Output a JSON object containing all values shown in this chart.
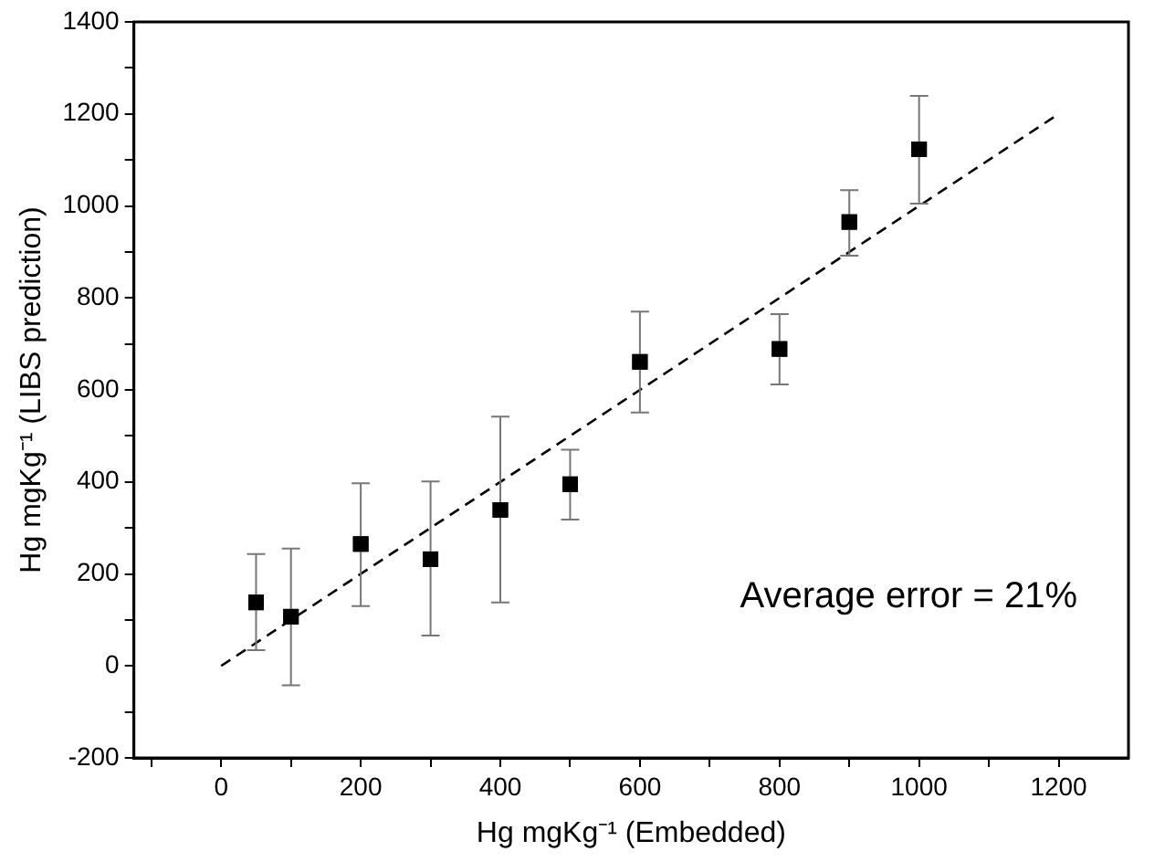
{
  "chart_data": {
    "type": "scatter",
    "xlabel": "Hg mgKg⁻¹ (Embedded)",
    "ylabel": "Hg mgKg⁻¹ (LIBS prediction)",
    "xlim": [
      -125,
      1300
    ],
    "ylim": [
      -200,
      1400
    ],
    "xticks": [
      {
        "value": -100,
        "label": null
      },
      0,
      {
        "value": 100,
        "label": null
      },
      200,
      {
        "value": 300,
        "label": null
      },
      400,
      {
        "value": 500,
        "label": null
      },
      600,
      {
        "value": 700,
        "label": null
      },
      800,
      {
        "value": 900,
        "label": null
      },
      1000,
      {
        "value": 1100,
        "label": null
      },
      1200
    ],
    "yticks": [
      -200,
      {
        "value": -100,
        "label": null
      },
      0,
      {
        "value": 100,
        "label": null
      },
      200,
      {
        "value": 300,
        "label": null
      },
      400,
      {
        "value": 500,
        "label": null
      },
      600,
      {
        "value": 700,
        "label": null
      },
      800,
      {
        "value": 900,
        "label": null
      },
      1000,
      {
        "value": 1100,
        "label": null
      },
      1200,
      {
        "value": 1300,
        "label": null
      },
      1400
    ],
    "grid": false,
    "legend": false,
    "series": [
      {
        "type": "scatter",
        "color": "#000000",
        "marker": "square",
        "x": [
          50,
          100,
          200,
          300,
          400,
          500,
          600,
          800,
          900,
          1000
        ],
        "values": [
          138,
          107,
          265,
          232,
          339,
          395,
          661,
          689,
          965,
          1123
        ],
        "errors": [
          [
            34,
            243
          ],
          [
            -42,
            255
          ],
          [
            130,
            397
          ],
          [
            66,
            401
          ],
          [
            138,
            542
          ],
          [
            318,
            470
          ],
          [
            551,
            770
          ],
          [
            612,
            765
          ],
          [
            892,
            1034
          ],
          [
            1005,
            1239
          ]
        ]
      },
      {
        "type": "line",
        "color": "#000000",
        "marker": "none",
        "line_style": "dashed",
        "x": [
          0,
          1200
        ],
        "values": [
          0,
          1200
        ]
      }
    ],
    "annotations": [
      "Average error = 21%"
    ]
  }
}
